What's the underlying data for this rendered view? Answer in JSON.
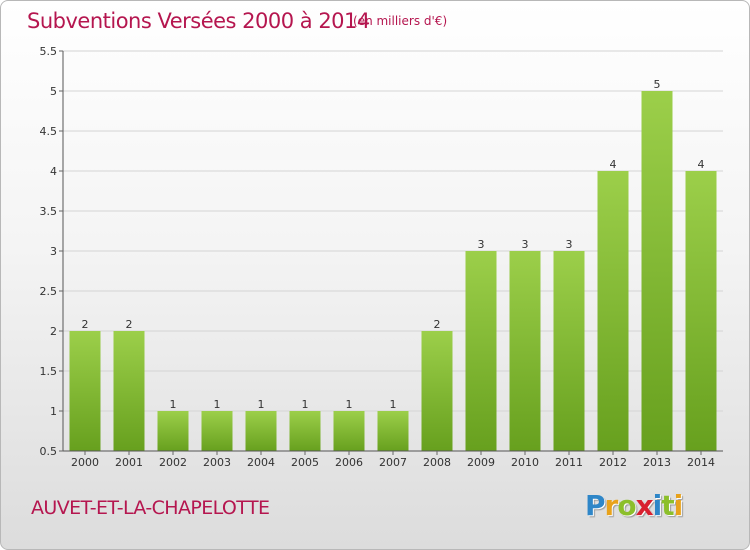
{
  "title": "Subventions Versées 2000 à 2014",
  "subtitle": "(en milliers d'€)",
  "commune": "AUVET-ET-LA-CHAPELOTTE",
  "logo": {
    "letters": [
      {
        "ch": "P",
        "color": "#2e86c8"
      },
      {
        "ch": "r",
        "color": "#e8a21b"
      },
      {
        "ch": "o",
        "color": "#8cbf2b"
      },
      {
        "ch": "x",
        "color": "#d8202f"
      },
      {
        "ch": "i",
        "color": "#2e86c8"
      },
      {
        "ch": "t",
        "color": "#8cbf2b"
      },
      {
        "ch": "i",
        "color": "#e8a21b"
      }
    ]
  },
  "colors": {
    "bar_top": "#9ccf4a",
    "bar_bottom": "#67a01e",
    "accent": "#b5164f"
  },
  "chart_data": {
    "type": "bar",
    "categories": [
      "2000",
      "2001",
      "2002",
      "2003",
      "2004",
      "2005",
      "2006",
      "2007",
      "2008",
      "2009",
      "2010",
      "2011",
      "2012",
      "2013",
      "2014"
    ],
    "values": [
      2,
      2,
      1,
      1,
      1,
      1,
      1,
      1,
      2,
      3,
      3,
      3,
      4,
      5,
      4
    ],
    "data_labels": [
      "2",
      "2",
      "1",
      "1",
      "1",
      "1",
      "1",
      "1",
      "2",
      "3",
      "3",
      "3",
      "4",
      "5",
      "4"
    ],
    "ylim": [
      0.5,
      5.5
    ],
    "yticks": [
      0.5,
      1,
      1.5,
      2,
      2.5,
      3,
      3.5,
      4,
      4.5,
      5,
      5.5
    ],
    "ytick_labels": [
      "0.5",
      "1",
      "1.5",
      "2",
      "2.5",
      "3",
      "3.5",
      "4",
      "4.5",
      "5",
      "5.5"
    ],
    "grid": true
  }
}
